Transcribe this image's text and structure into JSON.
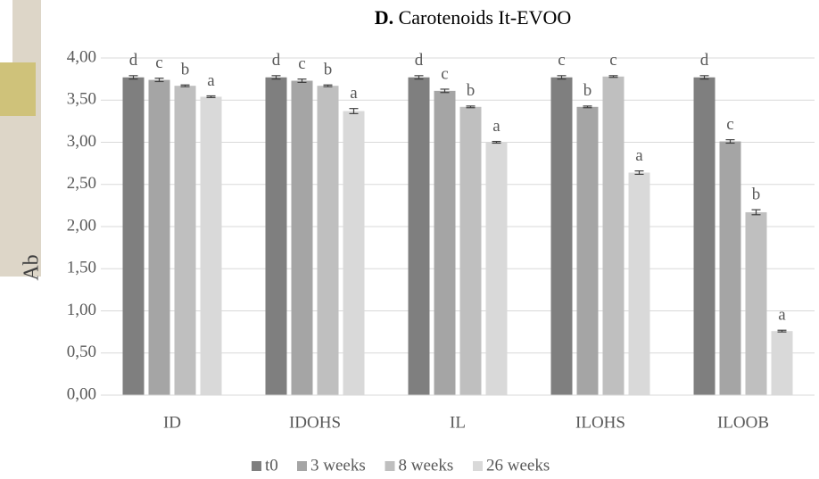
{
  "chart_data": {
    "type": "bar",
    "panel": "D.",
    "title": "Carotenoids It-EVOO",
    "y_label": "Ab",
    "categories": [
      "ID",
      "IDOHS",
      "IL",
      "ILOHS",
      "ILOOB"
    ],
    "series": [
      {
        "name": "t0",
        "color": "#7f7f7f",
        "values": [
          3.77,
          3.77,
          3.77,
          3.77,
          3.77
        ],
        "errors": [
          0.02,
          0.02,
          0.02,
          0.02,
          0.02
        ],
        "letters": [
          "d",
          "d",
          "d",
          "c",
          "d"
        ]
      },
      {
        "name": "3 weeks",
        "color": "#a5a5a5",
        "values": [
          3.74,
          3.73,
          3.61,
          3.42,
          3.01
        ],
        "errors": [
          0.02,
          0.02,
          0.02,
          0.01,
          0.02
        ],
        "letters": [
          "c",
          "c",
          "c",
          "b",
          "c"
        ]
      },
      {
        "name": "8 weeks",
        "color": "#bfbfbf",
        "values": [
          3.67,
          3.67,
          3.42,
          3.78,
          2.17
        ],
        "errors": [
          0.01,
          0.01,
          0.01,
          0.01,
          0.03
        ],
        "letters": [
          "b",
          "b",
          "b",
          "c",
          "b"
        ]
      },
      {
        "name": "26 weeks",
        "color": "#d9d9d9",
        "values": [
          3.54,
          3.37,
          3.0,
          2.64,
          0.76
        ],
        "errors": [
          0.01,
          0.03,
          0.01,
          0.02,
          0.01
        ],
        "letters": [
          "a",
          "a",
          "a",
          "a",
          "a"
        ]
      }
    ],
    "ylim": [
      0,
      4
    ],
    "yticks": [
      {
        "value": 0,
        "label": "0,00"
      },
      {
        "value": 0.5,
        "label": "0,50"
      },
      {
        "value": 1,
        "label": "1,00"
      },
      {
        "value": 1.5,
        "label": "1,50"
      },
      {
        "value": 2,
        "label": "2,00"
      },
      {
        "value": 2.5,
        "label": "2,50"
      },
      {
        "value": 3,
        "label": "3,00"
      },
      {
        "value": 3.5,
        "label": "3,50"
      },
      {
        "value": 4,
        "label": "4,00"
      }
    ],
    "grid": true,
    "legend": "bottom"
  }
}
